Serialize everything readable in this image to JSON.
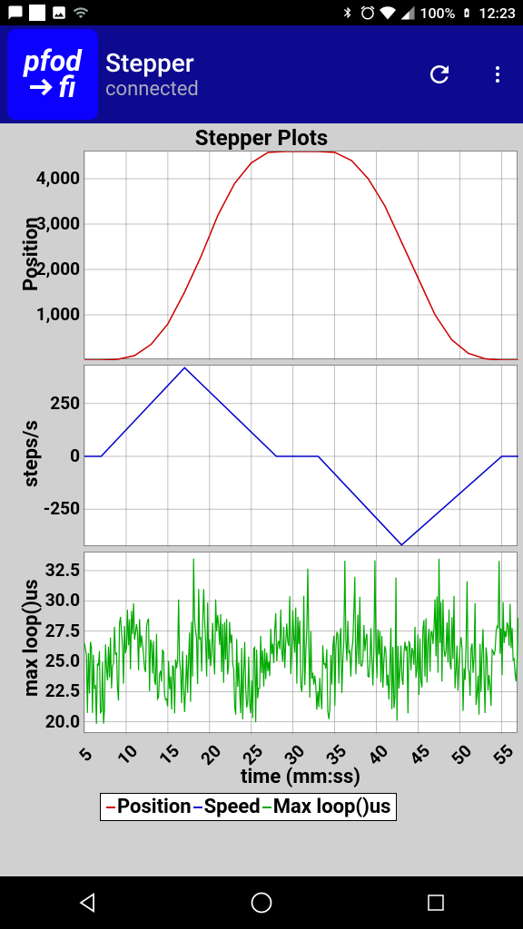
{
  "status_bar": {
    "battery_text": "100%",
    "time": "12:23"
  },
  "app_bar": {
    "logo_top": "pfod",
    "logo_bot": "fi",
    "title": "Stepper",
    "subtitle": "connected"
  },
  "plots": {
    "title": "Stepper Plots",
    "xlabel": "time (mm:ss)",
    "xlim": [
      5,
      57
    ],
    "xticks": [
      5,
      10,
      15,
      20,
      25,
      30,
      35,
      40,
      45,
      50,
      55
    ],
    "grid_color": "#808080",
    "chart_bg": "#ffffff",
    "page_bg": "#d0d0d0",
    "position_chart": {
      "ylabel": "Position",
      "ylim": [
        0,
        4600
      ],
      "yticks": [
        1000,
        2000,
        3000,
        4000
      ],
      "ytick_labels": [
        "1,000",
        "2,000",
        "3,000",
        "4,000"
      ],
      "color": "#cc0000",
      "data": [
        [
          5,
          0
        ],
        [
          7,
          0
        ],
        [
          9,
          20
        ],
        [
          11,
          100
        ],
        [
          13,
          350
        ],
        [
          15,
          800
        ],
        [
          17,
          1500
        ],
        [
          19,
          2300
        ],
        [
          21,
          3200
        ],
        [
          23,
          3900
        ],
        [
          25,
          4350
        ],
        [
          27,
          4580
        ],
        [
          29,
          4600
        ],
        [
          31,
          4600
        ],
        [
          33,
          4600
        ],
        [
          35,
          4580
        ],
        [
          37,
          4400
        ],
        [
          39,
          4000
        ],
        [
          41,
          3400
        ],
        [
          43,
          2600
        ],
        [
          45,
          1800
        ],
        [
          47,
          1000
        ],
        [
          49,
          450
        ],
        [
          51,
          150
        ],
        [
          53,
          30
        ],
        [
          55,
          0
        ],
        [
          57,
          0
        ]
      ]
    },
    "speed_chart": {
      "ylabel": "steps/s",
      "ylim": [
        -430,
        430
      ],
      "yticks": [
        -250,
        0,
        250
      ],
      "ytick_labels": [
        "-250",
        "0",
        "250"
      ],
      "color": "#0000cc",
      "data": [
        [
          5,
          0
        ],
        [
          7,
          0
        ],
        [
          17,
          420
        ],
        [
          28,
          0
        ],
        [
          33,
          0
        ],
        [
          43,
          -420
        ],
        [
          55,
          0
        ],
        [
          57,
          0
        ]
      ]
    },
    "loop_chart": {
      "ylabel": "max loop()us",
      "ylim": [
        19,
        34
      ],
      "yticks": [
        20.0,
        22.5,
        25.0,
        27.5,
        30.0,
        32.5
      ],
      "ytick_labels": [
        "20.0",
        "22.5",
        "25.0",
        "27.5",
        "30.0",
        "32.5"
      ],
      "color": "#00aa00",
      "data_seed": 42
    },
    "legend": {
      "items": [
        {
          "label": "Position",
          "color": "#cc0000"
        },
        {
          "label": "Speed",
          "color": "#0000cc"
        },
        {
          "label": "Max loop()us",
          "color": "#00aa00"
        }
      ]
    }
  }
}
